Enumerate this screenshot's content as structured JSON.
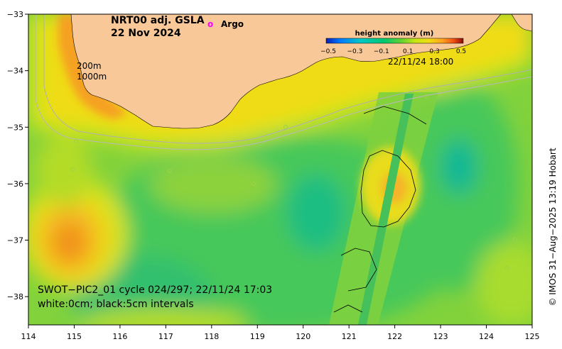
{
  "title": {
    "line1": "NRT00 adj. GSLA",
    "line2": "22 Nov 2024"
  },
  "legend": {
    "argo_marker": "o",
    "argo_label": "Argo",
    "argo_color": "#ff00ff"
  },
  "colorbar": {
    "title": "height anomaly (m)",
    "ticks": [
      "−0.5",
      "−0.3",
      "−0.1",
      "0.1",
      "0.3",
      "0.5"
    ],
    "colors": [
      "#0a1eb4",
      "#0078ff",
      "#00c8c8",
      "#00c870",
      "#64d232",
      "#c8e614",
      "#f0dc14",
      "#ffa01e",
      "#f05014",
      "#c81e1e",
      "#8c0a0a"
    ]
  },
  "annotations": {
    "timestamp": "22/11/24 18:00",
    "contour_200": "200m",
    "contour_1000": "1000m",
    "swot_line1": "SWOT−PIC2_01 cycle 024/297; 22/11/24 17:03",
    "swot_line2": "white:0cm; black:5cm intervals"
  },
  "axes": {
    "x_ticks": [
      "114",
      "115",
      "116",
      "117",
      "118",
      "119",
      "120",
      "121",
      "122",
      "123",
      "124",
      "125"
    ],
    "y_ticks": [
      "−33",
      "−34",
      "−35",
      "−36",
      "−37",
      "−38"
    ],
    "lon_range": [
      114,
      125
    ],
    "lat_range": [
      -38.5,
      -33
    ]
  },
  "credit": "© IMOS 31−Aug−2025 13:19 Hobart",
  "colors": {
    "land": "#f8c898",
    "sea_background": "#82d23c"
  }
}
